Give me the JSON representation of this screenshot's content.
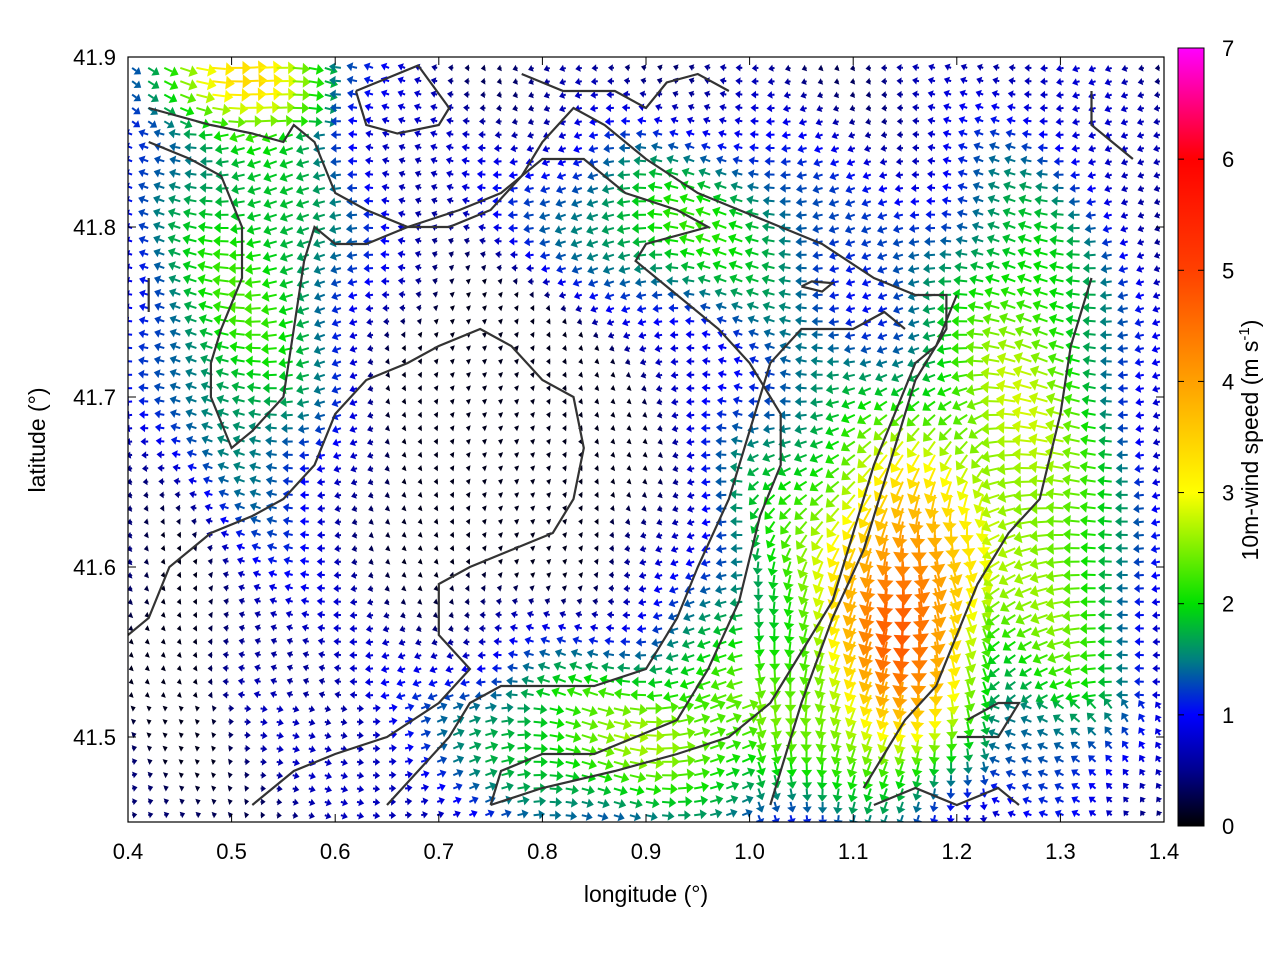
{
  "chart_data": {
    "type": "quiver",
    "xlabel": "longitude (°)",
    "ylabel": "latitude (°)",
    "xlim": [
      0.4,
      1.4
    ],
    "ylim": [
      41.45,
      41.9
    ],
    "x_ticks": [
      "0.4",
      "0.5",
      "0.6",
      "0.7",
      "0.8",
      "0.9",
      "1.0",
      "1.1",
      "1.2",
      "1.3",
      "1.4"
    ],
    "y_ticks": [
      "41.5",
      "41.6",
      "41.7",
      "41.8",
      "41.9"
    ],
    "x_tick_values": [
      0.4,
      0.5,
      0.6,
      0.7,
      0.8,
      0.9,
      1.0,
      1.1,
      1.2,
      1.3,
      1.4
    ],
    "y_tick_values": [
      41.5,
      41.6,
      41.7,
      41.8,
      41.9
    ],
    "colorbar": {
      "label_main": "10m-wind speed (m s",
      "label_sup": "-1",
      "label_end": ")",
      "min": 0,
      "max": 7,
      "ticks": [
        "0",
        "1",
        "2",
        "3",
        "4",
        "5",
        "6",
        "7"
      ],
      "tick_values": [
        0,
        1,
        2,
        3,
        4,
        5,
        6,
        7
      ],
      "palette": [
        {
          "v": 0.0,
          "c": "#000000"
        },
        {
          "v": 0.5,
          "c": "#00008f"
        },
        {
          "v": 1.0,
          "c": "#0000ff"
        },
        {
          "v": 1.5,
          "c": "#008080"
        },
        {
          "v": 2.0,
          "c": "#00e000"
        },
        {
          "v": 2.5,
          "c": "#80f000"
        },
        {
          "v": 3.0,
          "c": "#ffff00"
        },
        {
          "v": 4.0,
          "c": "#ffa000"
        },
        {
          "v": 5.0,
          "c": "#ff4000"
        },
        {
          "v": 6.0,
          "c": "#ff0000"
        },
        {
          "v": 7.0,
          "c": "#ff00ff"
        }
      ]
    },
    "grid": false,
    "contour_color": "#333333",
    "contours": [
      [
        [
          0.42,
          41.87
        ],
        [
          0.48,
          41.86
        ],
        [
          0.52,
          41.855
        ],
        [
          0.55,
          41.85
        ],
        [
          0.56,
          41.86
        ],
        [
          0.58,
          41.85
        ],
        [
          0.6,
          41.82
        ],
        [
          0.63,
          41.81
        ],
        [
          0.67,
          41.8
        ],
        [
          0.71,
          41.8
        ],
        [
          0.75,
          41.81
        ],
        [
          0.78,
          41.83
        ],
        [
          0.8,
          41.85
        ],
        [
          0.83,
          41.87
        ],
        [
          0.86,
          41.86
        ],
        [
          0.9,
          41.84
        ],
        [
          0.95,
          41.82
        ],
        [
          0.99,
          41.81
        ],
        [
          1.03,
          41.8
        ],
        [
          1.07,
          41.79
        ],
        [
          1.12,
          41.77
        ],
        [
          1.16,
          41.76
        ],
        [
          1.19,
          41.76
        ],
        [
          1.19,
          41.74
        ],
        [
          1.16,
          41.71
        ],
        [
          1.14,
          41.67
        ],
        [
          1.11,
          41.61
        ],
        [
          1.08,
          41.57
        ],
        [
          1.05,
          41.52
        ],
        [
          1.02,
          41.46
        ]
      ],
      [
        [
          0.42,
          41.85
        ],
        [
          0.46,
          41.84
        ],
        [
          0.49,
          41.83
        ],
        [
          0.51,
          41.8
        ],
        [
          0.51,
          41.77
        ],
        [
          0.49,
          41.74
        ],
        [
          0.48,
          41.72
        ],
        [
          0.48,
          41.7
        ],
        [
          0.5,
          41.67
        ],
        [
          0.52,
          41.68
        ],
        [
          0.55,
          41.7
        ],
        [
          0.56,
          41.74
        ],
        [
          0.57,
          41.78
        ],
        [
          0.58,
          41.8
        ],
        [
          0.6,
          41.79
        ],
        [
          0.63,
          41.79
        ],
        [
          0.67,
          41.8
        ],
        [
          0.72,
          41.81
        ],
        [
          0.76,
          41.82
        ],
        [
          0.8,
          41.84
        ],
        [
          0.84,
          41.84
        ],
        [
          0.88,
          41.82
        ],
        [
          0.93,
          41.81
        ],
        [
          0.96,
          41.8
        ],
        [
          0.9,
          41.79
        ],
        [
          0.89,
          41.78
        ],
        [
          0.93,
          41.76
        ],
        [
          0.97,
          41.74
        ],
        [
          1.0,
          41.72
        ],
        [
          1.03,
          41.69
        ],
        [
          1.03,
          41.66
        ],
        [
          1.01,
          41.63
        ],
        [
          0.99,
          41.58
        ],
        [
          0.96,
          41.54
        ],
        [
          0.93,
          41.51
        ],
        [
          0.89,
          41.5
        ],
        [
          0.85,
          41.49
        ],
        [
          0.8,
          41.49
        ],
        [
          0.76,
          41.48
        ],
        [
          0.75,
          41.46
        ]
      ],
      [
        [
          0.4,
          41.56
        ],
        [
          0.42,
          41.57
        ],
        [
          0.44,
          41.6
        ],
        [
          0.48,
          41.62
        ],
        [
          0.52,
          41.63
        ],
        [
          0.55,
          41.64
        ],
        [
          0.58,
          41.66
        ],
        [
          0.6,
          41.69
        ],
        [
          0.63,
          41.71
        ],
        [
          0.67,
          41.72
        ],
        [
          0.7,
          41.73
        ],
        [
          0.74,
          41.74
        ],
        [
          0.77,
          41.73
        ],
        [
          0.8,
          41.71
        ],
        [
          0.83,
          41.7
        ],
        [
          0.84,
          41.67
        ],
        [
          0.83,
          41.64
        ],
        [
          0.81,
          41.62
        ],
        [
          0.77,
          41.61
        ],
        [
          0.73,
          41.6
        ],
        [
          0.7,
          41.59
        ],
        [
          0.7,
          41.56
        ],
        [
          0.73,
          41.54
        ],
        [
          0.7,
          41.52
        ],
        [
          0.65,
          41.5
        ],
        [
          0.6,
          41.49
        ],
        [
          0.56,
          41.48
        ],
        [
          0.52,
          41.46
        ]
      ],
      [
        [
          0.65,
          41.46
        ],
        [
          0.68,
          41.48
        ],
        [
          0.71,
          41.5
        ],
        [
          0.73,
          41.52
        ],
        [
          0.76,
          41.53
        ],
        [
          0.8,
          41.53
        ],
        [
          0.85,
          41.53
        ],
        [
          0.9,
          41.54
        ],
        [
          0.93,
          41.57
        ],
        [
          0.95,
          41.6
        ],
        [
          0.98,
          41.64
        ],
        [
          1.0,
          41.68
        ],
        [
          1.02,
          41.72
        ],
        [
          1.05,
          41.74
        ],
        [
          1.1,
          41.74
        ],
        [
          1.13,
          41.75
        ],
        [
          1.15,
          41.74
        ]
      ],
      [
        [
          0.75,
          41.46
        ],
        [
          0.8,
          41.47
        ],
        [
          0.87,
          41.48
        ],
        [
          0.93,
          41.49
        ],
        [
          0.98,
          41.5
        ],
        [
          1.02,
          41.52
        ],
        [
          1.05,
          41.55
        ],
        [
          1.08,
          41.58
        ],
        [
          1.1,
          41.62
        ],
        [
          1.12,
          41.66
        ],
        [
          1.14,
          41.69
        ],
        [
          1.16,
          41.72
        ],
        [
          1.18,
          41.73
        ],
        [
          1.2,
          41.76
        ]
      ],
      [
        [
          1.12,
          41.46
        ],
        [
          1.16,
          41.47
        ],
        [
          1.2,
          41.46
        ],
        [
          1.24,
          41.47
        ],
        [
          1.26,
          41.46
        ]
      ],
      [
        [
          1.2,
          41.5
        ],
        [
          1.24,
          41.5
        ],
        [
          1.26,
          41.52
        ],
        [
          1.24,
          41.52
        ],
        [
          1.21,
          41.51
        ]
      ],
      [
        [
          1.33,
          41.88
        ],
        [
          1.33,
          41.86
        ],
        [
          1.35,
          41.85
        ],
        [
          1.37,
          41.84
        ]
      ],
      [
        [
          1.33,
          41.77
        ],
        [
          1.31,
          41.73
        ],
        [
          1.3,
          41.69
        ],
        [
          1.28,
          41.64
        ],
        [
          1.25,
          41.62
        ],
        [
          1.22,
          41.59
        ],
        [
          1.2,
          41.56
        ],
        [
          1.18,
          41.53
        ],
        [
          1.15,
          41.51
        ],
        [
          1.13,
          41.49
        ],
        [
          1.11,
          41.47
        ]
      ],
      [
        [
          0.62,
          41.88
        ],
        [
          0.68,
          41.895
        ],
        [
          0.71,
          41.87
        ],
        [
          0.7,
          41.86
        ],
        [
          0.66,
          41.855
        ],
        [
          0.63,
          41.86
        ],
        [
          0.62,
          41.88
        ]
      ],
      [
        [
          1.05,
          41.765
        ],
        [
          1.07,
          41.762
        ],
        [
          1.08,
          41.767
        ],
        [
          1.06,
          41.768
        ],
        [
          1.05,
          41.765
        ]
      ],
      [
        [
          0.42,
          41.75
        ],
        [
          0.42,
          41.77
        ]
      ],
      [
        [
          0.78,
          41.89
        ],
        [
          0.82,
          41.88
        ],
        [
          0.87,
          41.88
        ],
        [
          0.9,
          41.87
        ],
        [
          0.92,
          41.885
        ],
        [
          0.95,
          41.89
        ],
        [
          0.98,
          41.88
        ]
      ]
    ]
  }
}
